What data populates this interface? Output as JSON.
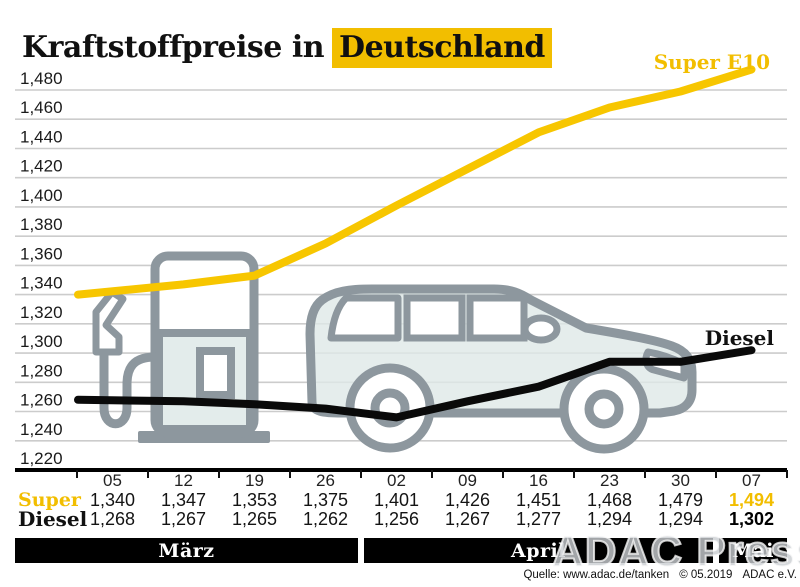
{
  "title": {
    "prefix": "Kraftstoffpreise in",
    "highlight": "Deutschland"
  },
  "series_labels": {
    "super": "Super E10",
    "diesel": "Diesel"
  },
  "table": {
    "super_label": "Super",
    "diesel_label": "Diesel"
  },
  "months": [
    {
      "label": "März",
      "cols": 4
    },
    {
      "label": "April",
      "cols": 5
    },
    {
      "label": "Mai",
      "cols": 1
    }
  ],
  "watermark": "ADAC Presse",
  "source": {
    "label": "Quelle: www.adac.de/tanken",
    "copyright": "© 05.2019",
    "org": "ADAC e.V."
  },
  "colors": {
    "accent": "#F2BE00",
    "super_line": "#F7C600",
    "diesel_line": "#0a0a0a",
    "grid": "#cccccc",
    "art_outline": "#8D979E",
    "art_fill": "#DEE9E7",
    "band_bg": "#000000"
  },
  "chart_data": {
    "type": "line",
    "title": "Kraftstoffpreise in Deutschland",
    "x": [
      "05",
      "12",
      "19",
      "26",
      "02",
      "09",
      "16",
      "23",
      "30",
      "07"
    ],
    "x_months": [
      "März",
      "März",
      "März",
      "März",
      "April",
      "April",
      "April",
      "April",
      "April",
      "Mai"
    ],
    "series": [
      {
        "name": "Super E10",
        "color": "#F7C600",
        "values": [
          1.34,
          1.347,
          1.353,
          1.375,
          1.401,
          1.426,
          1.451,
          1.468,
          1.479,
          1.494
        ]
      },
      {
        "name": "Diesel",
        "color": "#0a0a0a",
        "values": [
          1.268,
          1.267,
          1.265,
          1.262,
          1.256,
          1.267,
          1.277,
          1.294,
          1.294,
          1.302
        ]
      }
    ],
    "yticks": [
      1.22,
      1.24,
      1.26,
      1.28,
      1.3,
      1.32,
      1.34,
      1.36,
      1.38,
      1.4,
      1.42,
      1.44,
      1.46,
      1.48
    ],
    "ylim": [
      1.22,
      1.5
    ],
    "grid": true,
    "legend_position": "line-end-labels",
    "decimal_format": "comma"
  }
}
